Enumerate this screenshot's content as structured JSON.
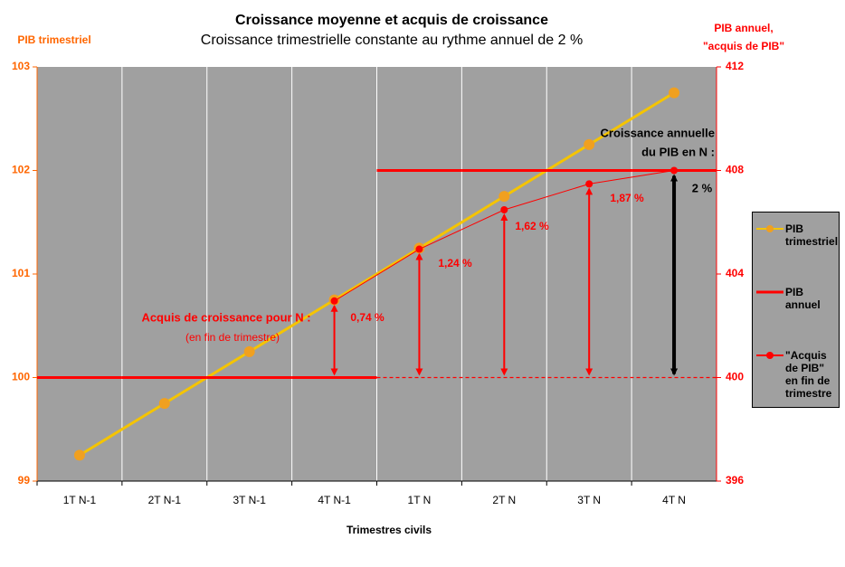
{
  "chart_data": {
    "type": "line",
    "title": "Croissance moyenne et acquis de croissance",
    "subtitle": "Croissance trimestrielle constante au rythme annuel de 2  %",
    "y_label": "PIB trimestriel",
    "y2_label": [
      "PIB annuel,",
      "\"acquis de PIB\""
    ],
    "x_label": "Trimestres civils",
    "categories": [
      "1T N-1",
      "2T N-1",
      "3T N-1",
      "4T N-1",
      "1T N",
      "2T N",
      "3T N",
      "4T N"
    ],
    "series": [
      {
        "name": "PIB trimestriel",
        "color": "#f5c400",
        "marker_color": "#f0a020",
        "values": [
          99.25,
          99.75,
          100.25,
          100.75,
          101.25,
          101.75,
          102.25,
          102.75
        ]
      },
      {
        "name": "PIB annuel",
        "color": "#ff0000",
        "axis": "y2",
        "step": true,
        "values": [
          400,
          400,
          400,
          400,
          408,
          408,
          408,
          408
        ]
      },
      {
        "name": "\"Acquis de PIB\" en fin de trimestre",
        "color": "#ff0000",
        "axis": "y2",
        "values": [
          null,
          null,
          null,
          402.96,
          404.96,
          406.48,
          407.48,
          408
        ]
      }
    ],
    "ylim": [
      99,
      103
    ],
    "yticks": [
      99,
      100,
      101,
      102,
      103
    ],
    "y2lim": [
      396,
      412
    ],
    "y2ticks": [
      396,
      400,
      404,
      408,
      412
    ],
    "final_arrow_color": "#000000",
    "annotations": [
      "Acquis de croissance pour N :",
      "(en fin de trimestre)",
      "0,74 %",
      "1,24 %",
      "1,62 %",
      "1,87  %",
      "Croissance annuelle",
      "du PIB en N :",
      "2 %"
    ],
    "legend": "right"
  }
}
